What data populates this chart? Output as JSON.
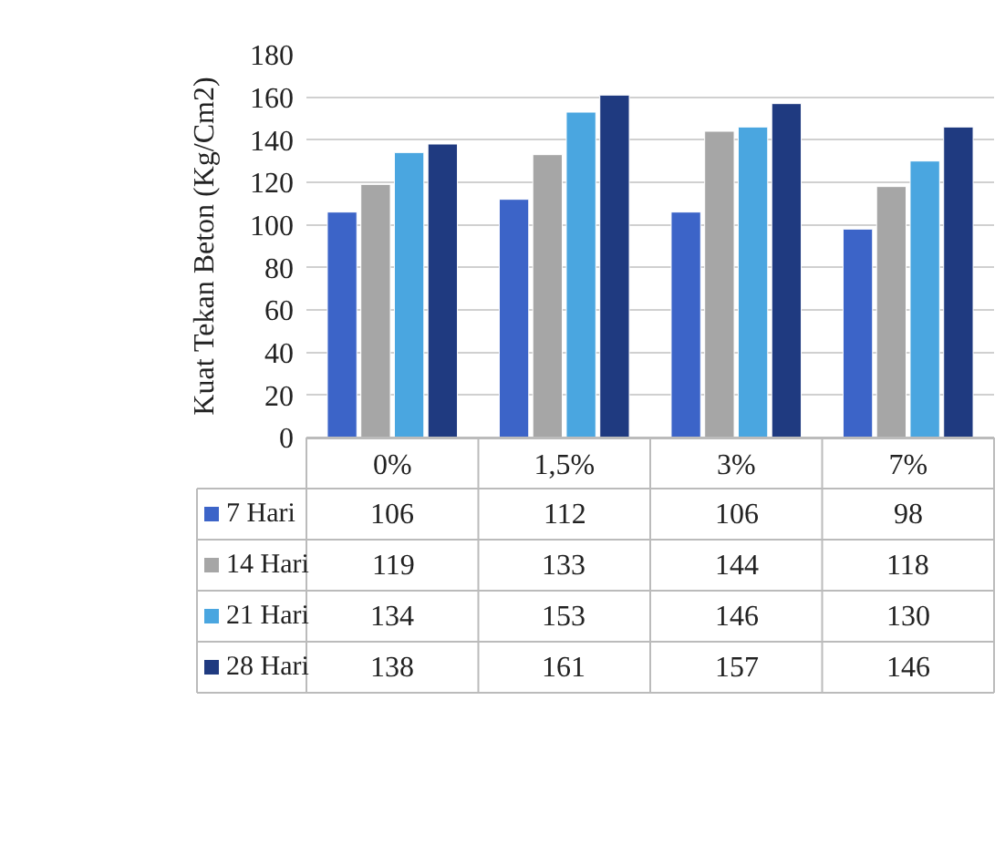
{
  "chart_data": {
    "type": "bar",
    "ylabel": "Kuat Tekan Beton (Kg/Cm2)",
    "categories": [
      "0%",
      "1,5%",
      "3%",
      "7%"
    ],
    "series": [
      {
        "name": "7 Hari",
        "color": "#3c64c8",
        "values": [
          106,
          112,
          106,
          98
        ]
      },
      {
        "name": "14 Hari",
        "color": "#a6a6a6",
        "values": [
          119,
          133,
          144,
          118
        ]
      },
      {
        "name": "21 Hari",
        "color": "#4aa6e0",
        "values": [
          134,
          153,
          146,
          130
        ]
      },
      {
        "name": "28 Hari",
        "color": "#1f3a80",
        "values": [
          138,
          161,
          157,
          146
        ]
      }
    ],
    "ylim": [
      0,
      180
    ],
    "yticks": [
      0,
      20,
      40,
      60,
      80,
      100,
      120,
      140,
      160,
      180
    ],
    "grid": "y",
    "legend": "bottom",
    "data_labels": true
  }
}
